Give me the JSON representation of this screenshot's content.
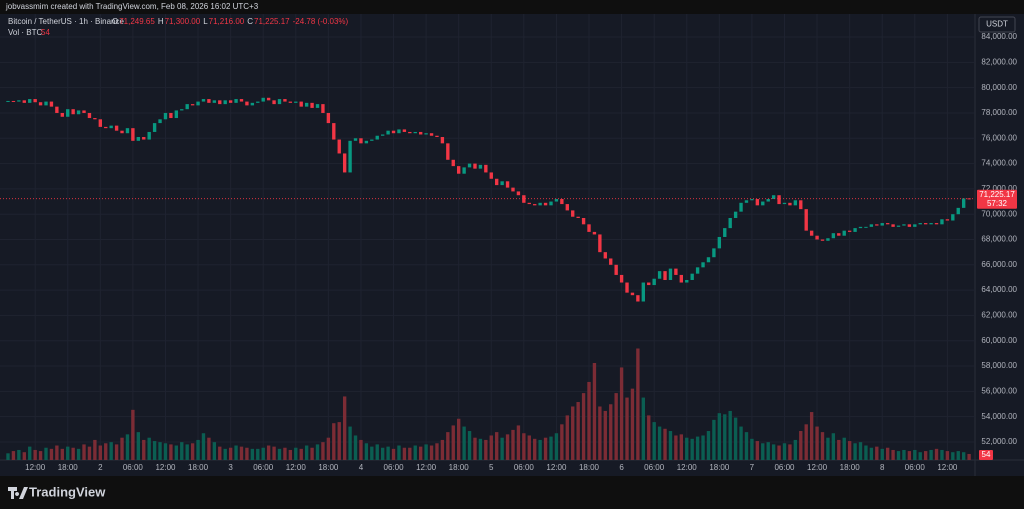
{
  "credit": "jobvassmim created with TradingView.com, Feb 08, 2026 16:02 UTC+3",
  "logo": "TradingView",
  "chart_data": {
    "type": "candlestick",
    "title": "Bitcoin / TetherUS · 1h · Binance",
    "ohlc": [
      {
        "label": "O",
        "value": "71,249.65"
      },
      {
        "label": "H",
        "value": "71,300.00"
      },
      {
        "label": "L",
        "value": "71,216.00"
      },
      {
        "label": "C",
        "value": "71,225.17"
      }
    ],
    "change": "-24.78 (-0.03%)",
    "volume_title": "Vol · BTC",
    "volume_value": "54",
    "currency": "USDT",
    "price_label": "71,225.17",
    "countdown": "57:32",
    "volume_label": "54",
    "up_color": "#089981",
    "down_color": "#f23645",
    "volume_up_color": "#0b5e52",
    "volume_down_color": "#7c2c35",
    "grid": true,
    "open": [
      78900,
      78950,
      78900,
      79000,
      78800,
      79100,
      78850,
      78600,
      78900,
      78500,
      78000,
      77700,
      78300,
      77900,
      78200,
      78000,
      77600,
      77500,
      76900,
      76800,
      77000,
      76600,
      76400,
      76800,
      75800,
      76100,
      75900,
      76500,
      77200,
      77500,
      78000,
      77600,
      78200,
      78300,
      78700,
      78600,
      78900,
      79100,
      78800,
      79000,
      78700,
      79000,
      78800,
      79100,
      78900,
      78600,
      78800,
      78900,
      79200,
      79000,
      78700,
      79100,
      78900,
      78800,
      78900,
      78500,
      78800,
      78400,
      78700,
      78000,
      77200,
      75900,
      74800,
      73300,
      75800,
      76000,
      75600,
      75800,
      75900,
      76200,
      76300,
      76600,
      76400,
      76700,
      76500,
      76400,
      76500,
      76300,
      76400,
      76200,
      76100,
      75600,
      74300,
      73800,
      73200,
      73700,
      74000,
      73600,
      73900,
      73300,
      72800,
      72300,
      72600,
      72100,
      71800,
      71500,
      70900,
      70800,
      70700,
      70900,
      70700,
      71000,
      71200,
      70800,
      70300,
      69800,
      69700,
      69200,
      68600,
      68400,
      67000,
      66500,
      66000,
      65200,
      64600,
      63800,
      63600,
      63100,
      64600,
      64400,
      64900,
      65500,
      64800,
      65700,
      65200,
      64600,
      64800,
      65300,
      65800,
      66200,
      66600,
      67300,
      68200,
      68900,
      69700,
      70200,
      70900,
      71100,
      71200,
      70700,
      71000,
      71200,
      71500,
      70800,
      70900,
      70700,
      71100,
      70400,
      68700,
      68300,
      68000,
      67900,
      68100,
      68500,
      68300,
      68700,
      68600,
      68900,
      69000,
      69000,
      69200,
      69100,
      69300,
      69200,
      69000,
      69100,
      69200,
      69000,
      69200,
      69300,
      69200,
      69300,
      69200,
      69600,
      69500,
      70000,
      70500,
      71249.65
    ],
    "close": [
      78950,
      78900,
      79000,
      78800,
      79100,
      78850,
      78600,
      78900,
      78500,
      78000,
      77700,
      78300,
      77900,
      78200,
      78000,
      77600,
      77500,
      76900,
      76800,
      77000,
      76600,
      76400,
      76800,
      75800,
      76100,
      75900,
      76500,
      77200,
      77500,
      78000,
      77600,
      78200,
      78300,
      78700,
      78600,
      78900,
      79100,
      78800,
      79000,
      78700,
      79000,
      78800,
      79100,
      78900,
      78600,
      78800,
      78900,
      79200,
      79000,
      78700,
      79100,
      78900,
      78800,
      78900,
      78500,
      78800,
      78400,
      78700,
      78000,
      77200,
      75900,
      74800,
      73300,
      75800,
      76000,
      75600,
      75800,
      75900,
      76200,
      76300,
      76600,
      76400,
      76700,
      76500,
      76400,
      76500,
      76300,
      76400,
      76200,
      76100,
      75600,
      74300,
      73800,
      73200,
      73700,
      74000,
      73600,
      73900,
      73300,
      72800,
      72300,
      72600,
      72100,
      71800,
      71500,
      70900,
      70800,
      70700,
      70900,
      70700,
      71000,
      71200,
      70800,
      70300,
      69800,
      69700,
      69200,
      68600,
      68400,
      67000,
      66500,
      66000,
      65200,
      64600,
      63800,
      63600,
      63100,
      64600,
      64400,
      64900,
      65500,
      64800,
      65700,
      65200,
      64600,
      64800,
      65300,
      65800,
      66200,
      66600,
      67300,
      68200,
      68900,
      69700,
      70200,
      70900,
      71100,
      71200,
      70700,
      71000,
      71200,
      71500,
      70800,
      70900,
      70700,
      71100,
      70400,
      68700,
      68300,
      68000,
      67900,
      68100,
      68500,
      68300,
      68700,
      68600,
      68900,
      69000,
      69000,
      69200,
      69100,
      69300,
      69200,
      69000,
      69100,
      69200,
      69000,
      69200,
      69300,
      69200,
      69300,
      69200,
      69600,
      69500,
      70000,
      70500,
      71250,
      71225.17
    ],
    "volume": [
      60,
      80,
      90,
      70,
      120,
      90,
      80,
      110,
      100,
      130,
      100,
      120,
      110,
      100,
      140,
      120,
      180,
      130,
      150,
      160,
      140,
      200,
      230,
      450,
      250,
      180,
      200,
      170,
      160,
      150,
      140,
      130,
      160,
      140,
      150,
      180,
      240,
      200,
      160,
      120,
      100,
      110,
      130,
      120,
      110,
      100,
      100,
      110,
      130,
      120,
      100,
      110,
      90,
      110,
      100,
      130,
      110,
      140,
      160,
      200,
      330,
      340,
      570,
      300,
      220,
      180,
      150,
      120,
      140,
      110,
      120,
      100,
      130,
      110,
      110,
      130,
      120,
      140,
      130,
      150,
      180,
      250,
      310,
      370,
      300,
      260,
      200,
      190,
      180,
      220,
      250,
      200,
      230,
      270,
      310,
      240,
      220,
      190,
      180,
      200,
      210,
      240,
      320,
      400,
      480,
      520,
      600,
      700,
      870,
      480,
      440,
      500,
      600,
      830,
      560,
      640,
      1000,
      560,
      400,
      340,
      300,
      280,
      260,
      220,
      230,
      200,
      190,
      210,
      220,
      260,
      360,
      420,
      410,
      440,
      380,
      300,
      250,
      190,
      170,
      150,
      160,
      140,
      130,
      150,
      140,
      180,
      260,
      320,
      430,
      300,
      250,
      200,
      240,
      180,
      200,
      170,
      150,
      160,
      130,
      110,
      120,
      100,
      110,
      90,
      80,
      90,
      80,
      90,
      70,
      80,
      90,
      100,
      90,
      80,
      70,
      80,
      70,
      54
    ],
    "ylim": [
      50574,
      85822
    ],
    "vol_lim": [
      0,
      4000
    ],
    "yticks": [
      {
        "value": 52000,
        "label": "52,000.00"
      },
      {
        "value": 54000,
        "label": "54,000.00"
      },
      {
        "value": 56000,
        "label": "56,000.00"
      },
      {
        "value": 58000,
        "label": "58,000.00"
      },
      {
        "value": 60000,
        "label": "60,000.00"
      },
      {
        "value": 62000,
        "label": "62,000.00"
      },
      {
        "value": 64000,
        "label": "64,000.00"
      },
      {
        "value": 66000,
        "label": "66,000.00"
      },
      {
        "value": 68000,
        "label": "68,000.00"
      },
      {
        "value": 70000,
        "label": "70,000.00"
      },
      {
        "value": 72000,
        "label": "72,000.00"
      },
      {
        "value": 74000,
        "label": "74,000.00"
      },
      {
        "value": 76000,
        "label": "76,000.00"
      },
      {
        "value": 78000,
        "label": "78,000.00"
      },
      {
        "value": 80000,
        "label": "80,000.00"
      },
      {
        "value": 82000,
        "label": "82,000.00"
      },
      {
        "value": 84000,
        "label": "84,000.00"
      }
    ],
    "xticks": [
      {
        "value": 5,
        "label": "12:00"
      },
      {
        "value": 11,
        "label": "18:00"
      },
      {
        "value": 17,
        "label": "2"
      },
      {
        "value": 23,
        "label": "06:00"
      },
      {
        "value": 29,
        "label": "12:00"
      },
      {
        "value": 35,
        "label": "18:00"
      },
      {
        "value": 41,
        "label": "3"
      },
      {
        "value": 47,
        "label": "06:00"
      },
      {
        "value": 53,
        "label": "12:00"
      },
      {
        "value": 59,
        "label": "18:00"
      },
      {
        "value": 65,
        "label": "4"
      },
      {
        "value": 71,
        "label": "06:00"
      },
      {
        "value": 77,
        "label": "12:00"
      },
      {
        "value": 83,
        "label": "18:00"
      },
      {
        "value": 89,
        "label": "5"
      },
      {
        "value": 95,
        "label": "06:00"
      },
      {
        "value": 101,
        "label": "12:00"
      },
      {
        "value": 107,
        "label": "18:00"
      },
      {
        "value": 113,
        "label": "6"
      },
      {
        "value": 119,
        "label": "06:00"
      },
      {
        "value": 125,
        "label": "12:00"
      },
      {
        "value": 131,
        "label": "18:00"
      },
      {
        "value": 137,
        "label": "7"
      },
      {
        "value": 143,
        "label": "06:00"
      },
      {
        "value": 149,
        "label": "12:00"
      },
      {
        "value": 155,
        "label": "18:00"
      },
      {
        "value": 161,
        "label": "8"
      },
      {
        "value": 167,
        "label": "06:00"
      },
      {
        "value": 173,
        "label": "12:00"
      }
    ]
  }
}
